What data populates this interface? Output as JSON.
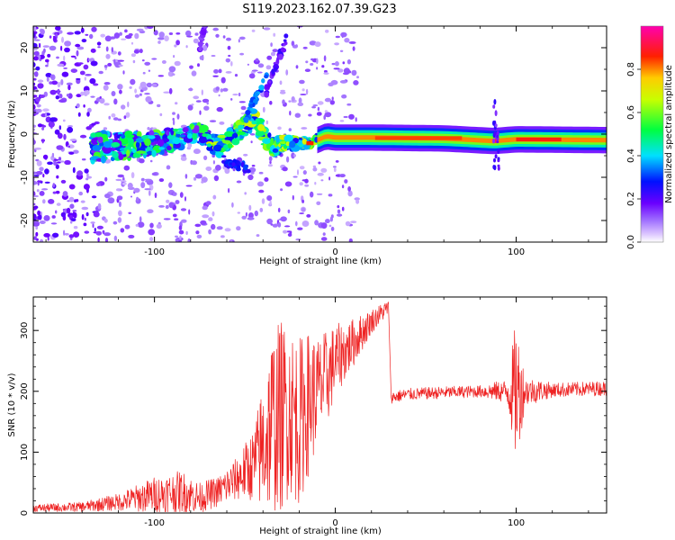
{
  "figure": {
    "title": "S119.2023.162.07.39.G23"
  },
  "chart_data": [
    {
      "type": "heatmap",
      "xlabel": "Height of straight line (km)",
      "ylabel": "Frequency (Hz)",
      "xlim": [
        -167,
        150
      ],
      "ylim": [
        -25,
        25
      ],
      "xticks": [
        -100,
        0,
        100
      ],
      "xtick_labels": [
        "-100",
        "0",
        "100"
      ],
      "yticks": [
        -20,
        -10,
        0,
        10,
        20
      ],
      "ytick_labels": [
        "-20",
        "-10",
        "0",
        "10",
        "20"
      ],
      "grid": false,
      "colorbar": {
        "label": "Normalized spectral amplitude",
        "range": [
          0,
          1
        ],
        "ticks": [
          0.0,
          0.2,
          0.4,
          0.6,
          0.8
        ],
        "tick_labels": [
          "0.0",
          "0.2",
          "0.4",
          "0.6",
          "0.8"
        ],
        "colors": [
          "#ffffff",
          "#b07cff",
          "#7000ff",
          "#0000ff",
          "#00ffff",
          "#00ff00",
          "#ffff00",
          "#ff0000",
          "#ff00aa"
        ]
      },
      "ridge": [
        {
          "x": -125,
          "f": -3.0,
          "spread": 3.2
        },
        {
          "x": -110,
          "f": -2.5,
          "spread": 2.6
        },
        {
          "x": -95,
          "f": -1.8,
          "spread": 2.4
        },
        {
          "x": -85,
          "f": -1.0,
          "spread": 2.2
        },
        {
          "x": -75,
          "f": 0.5,
          "spread": 2.0
        },
        {
          "x": -65,
          "f": -3.0,
          "spread": 2.0
        },
        {
          "x": -55,
          "f": 0.0,
          "spread": 2.0
        },
        {
          "x": -45,
          "f": 3.5,
          "spread": 2.0
        },
        {
          "x": -35,
          "f": -3.0,
          "spread": 1.8
        },
        {
          "x": -25,
          "f": -2.0,
          "spread": 1.5
        },
        {
          "x": -15,
          "f": -2.3,
          "spread": 1.0
        },
        {
          "x": -5,
          "f": -0.5,
          "spread": 0.8
        },
        {
          "x": 0,
          "f": -0.8,
          "spread": 0.8
        },
        {
          "x": 20,
          "f": -0.8,
          "spread": 0.8
        },
        {
          "x": 60,
          "f": -1.0,
          "spread": 0.8
        },
        {
          "x": 88,
          "f": -1.6,
          "spread": 0.9
        },
        {
          "x": 100,
          "f": -1.2,
          "spread": 0.8
        },
        {
          "x": 150,
          "f": -1.4,
          "spread": 0.8
        }
      ]
    },
    {
      "type": "line",
      "xlabel": "Height of straight line (km)",
      "ylabel": "SNR (10 * v/v)",
      "xlim": [
        -167,
        150
      ],
      "ylim": [
        0,
        355
      ],
      "xticks": [
        -100,
        0,
        100
      ],
      "xtick_labels": [
        "-100",
        "0",
        "100"
      ],
      "yticks": [
        0,
        100,
        200,
        300
      ],
      "ytick_labels": [
        "0",
        "100",
        "200",
        "300"
      ],
      "grid": false,
      "color": "#ee2222",
      "envelope": {
        "x": [
          -167,
          -140,
          -120,
          -100,
          -85,
          -75,
          -65,
          -55,
          -45,
          -40,
          -35,
          -30,
          -25,
          -20,
          -15,
          -10,
          -5,
          0,
          10,
          20,
          30,
          31,
          40,
          60,
          80,
          95,
          100,
          105,
          120,
          150
        ],
        "center": [
          8,
          10,
          18,
          30,
          35,
          25,
          35,
          55,
          80,
          110,
          150,
          160,
          170,
          150,
          180,
          200,
          220,
          250,
          280,
          315,
          340,
          190,
          195,
          198,
          200,
          200,
          200,
          200,
          202,
          205
        ],
        "amp": [
          6,
          8,
          14,
          30,
          35,
          25,
          25,
          35,
          60,
          110,
          150,
          160,
          140,
          140,
          120,
          90,
          80,
          60,
          40,
          20,
          12,
          10,
          10,
          10,
          10,
          20,
          120,
          25,
          12,
          12
        ]
      }
    }
  ]
}
